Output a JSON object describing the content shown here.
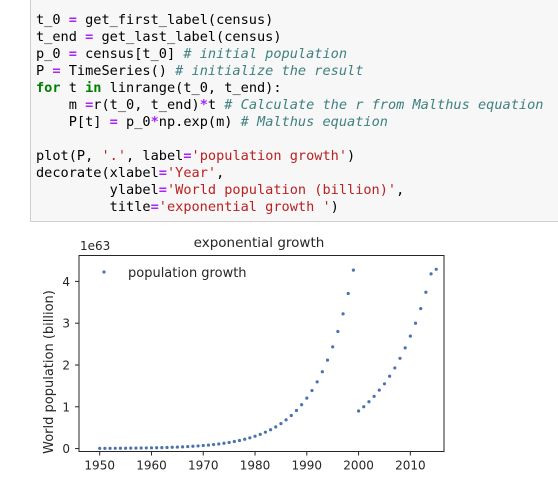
{
  "code_cell": {
    "lines": [
      [
        {
          "t": "t_0 "
        },
        {
          "t": "=",
          "c": "op"
        },
        {
          "t": " get_first_label(census)"
        }
      ],
      [
        {
          "t": "t_end "
        },
        {
          "t": "=",
          "c": "op"
        },
        {
          "t": " get_last_label(census)"
        }
      ],
      [
        {
          "t": "p_0 "
        },
        {
          "t": "=",
          "c": "op"
        },
        {
          "t": " census[t_0] "
        },
        {
          "t": "# initial population",
          "c": "com"
        }
      ],
      [
        {
          "t": "P "
        },
        {
          "t": "=",
          "c": "op"
        },
        {
          "t": " TimeSeries() "
        },
        {
          "t": "# initialize the result",
          "c": "com"
        }
      ],
      [
        {
          "t": "for",
          "c": "kw"
        },
        {
          "t": " t "
        },
        {
          "t": "in",
          "c": "kw"
        },
        {
          "t": " linrange(t_0, t_end):"
        }
      ],
      [
        {
          "t": "    m "
        },
        {
          "t": "=",
          "c": "op"
        },
        {
          "t": "r(t_0, t_end)"
        },
        {
          "t": "*",
          "c": "op"
        },
        {
          "t": "t "
        },
        {
          "t": "# Calculate the r from Malthus equation",
          "c": "com"
        }
      ],
      [
        {
          "t": "    P[t] "
        },
        {
          "t": "=",
          "c": "op"
        },
        {
          "t": " p_0"
        },
        {
          "t": "*",
          "c": "op"
        },
        {
          "t": "np.exp(m) "
        },
        {
          "t": "# Malthus equation",
          "c": "com"
        }
      ],
      [
        {
          "t": ""
        }
      ],
      [
        {
          "t": "plot(P, "
        },
        {
          "t": "'.'",
          "c": "str"
        },
        {
          "t": ", label"
        },
        {
          "t": "=",
          "c": "op"
        },
        {
          "t": "'population growth'",
          "c": "str"
        },
        {
          "t": ")"
        }
      ],
      [
        {
          "t": "decorate(xlabel"
        },
        {
          "t": "=",
          "c": "op"
        },
        {
          "t": "'Year'",
          "c": "str"
        },
        {
          "t": ","
        }
      ],
      [
        {
          "t": "         ylabel"
        },
        {
          "t": "=",
          "c": "op"
        },
        {
          "t": "'World population (billion)'",
          "c": "str"
        },
        {
          "t": ","
        }
      ],
      [
        {
          "t": "         title"
        },
        {
          "t": "=",
          "c": "op"
        },
        {
          "t": "'exponential growth '",
          "c": "str"
        },
        {
          "t": ")"
        }
      ]
    ]
  },
  "chart_data": {
    "type": "scatter",
    "title": "exponential growth",
    "xlabel": "",
    "ylabel": "World population (billion)",
    "offset_text": "1e63",
    "x_ticks": [
      "1950",
      "1960",
      "1970",
      "1980",
      "1990",
      "2000",
      "2010"
    ],
    "y_ticks": [
      "0",
      "1",
      "2",
      "3",
      "4"
    ],
    "xlim": [
      1946,
      2016.5
    ],
    "ylim": [
      -0.07,
      4.62
    ],
    "series": [
      {
        "name": "population growth",
        "color": "#4c72b0",
        "points": [
          [
            1950,
            0.0044
          ],
          [
            1951,
            0.005
          ],
          [
            1952,
            0.0058
          ],
          [
            1953,
            0.0067
          ],
          [
            1954,
            0.0077
          ],
          [
            1955,
            0.0088
          ],
          [
            1956,
            0.0102
          ],
          [
            1957,
            0.0117
          ],
          [
            1958,
            0.0135
          ],
          [
            1959,
            0.0155
          ],
          [
            1960,
            0.0178
          ],
          [
            1961,
            0.0205
          ],
          [
            1962,
            0.0236
          ],
          [
            1963,
            0.0272
          ],
          [
            1964,
            0.0313
          ],
          [
            1965,
            0.036
          ],
          [
            1966,
            0.0414
          ],
          [
            1967,
            0.0477
          ],
          [
            1968,
            0.0549
          ],
          [
            1969,
            0.0632
          ],
          [
            1970,
            0.0727
          ],
          [
            1971,
            0.0837
          ],
          [
            1972,
            0.0963
          ],
          [
            1973,
            0.1108
          ],
          [
            1974,
            0.1275
          ],
          [
            1975,
            0.1467
          ],
          [
            1976,
            0.1689
          ],
          [
            1977,
            0.1943
          ],
          [
            1978,
            0.2236
          ],
          [
            1979,
            0.2573
          ],
          [
            1980,
            0.2961
          ],
          [
            1981,
            0.3408
          ],
          [
            1982,
            0.3922
          ],
          [
            1983,
            0.4513
          ],
          [
            1984,
            0.5194
          ],
          [
            1985,
            0.5977
          ],
          [
            1986,
            0.6878
          ],
          [
            1987,
            0.7915
          ],
          [
            1988,
            0.9109
          ],
          [
            1989,
            1.0482
          ],
          [
            1990,
            1.2063
          ],
          [
            1991,
            1.3882
          ],
          [
            1992,
            1.5975
          ],
          [
            1993,
            1.8384
          ],
          [
            1994,
            2.1156
          ],
          [
            1995,
            2.4346
          ],
          [
            1996,
            2.8017
          ],
          [
            1997,
            3.2242
          ],
          [
            1998,
            3.7104
          ],
          [
            1999,
            4.2699
          ],
          [
            2000,
            0.9
          ],
          [
            2001,
            1.0
          ],
          [
            2002,
            1.12
          ],
          [
            2003,
            1.25
          ],
          [
            2004,
            1.4
          ],
          [
            2005,
            1.55
          ],
          [
            2006,
            1.73
          ],
          [
            2007,
            1.93
          ],
          [
            2008,
            2.16
          ],
          [
            2009,
            2.41
          ],
          [
            2010,
            2.69
          ],
          [
            2011,
            3.0
          ],
          [
            2012,
            3.35
          ],
          [
            2013,
            3.74
          ],
          [
            2014,
            4.18
          ],
          [
            2015,
            4.29
          ]
        ]
      }
    ],
    "legend": "upper-left",
    "grid": false
  }
}
